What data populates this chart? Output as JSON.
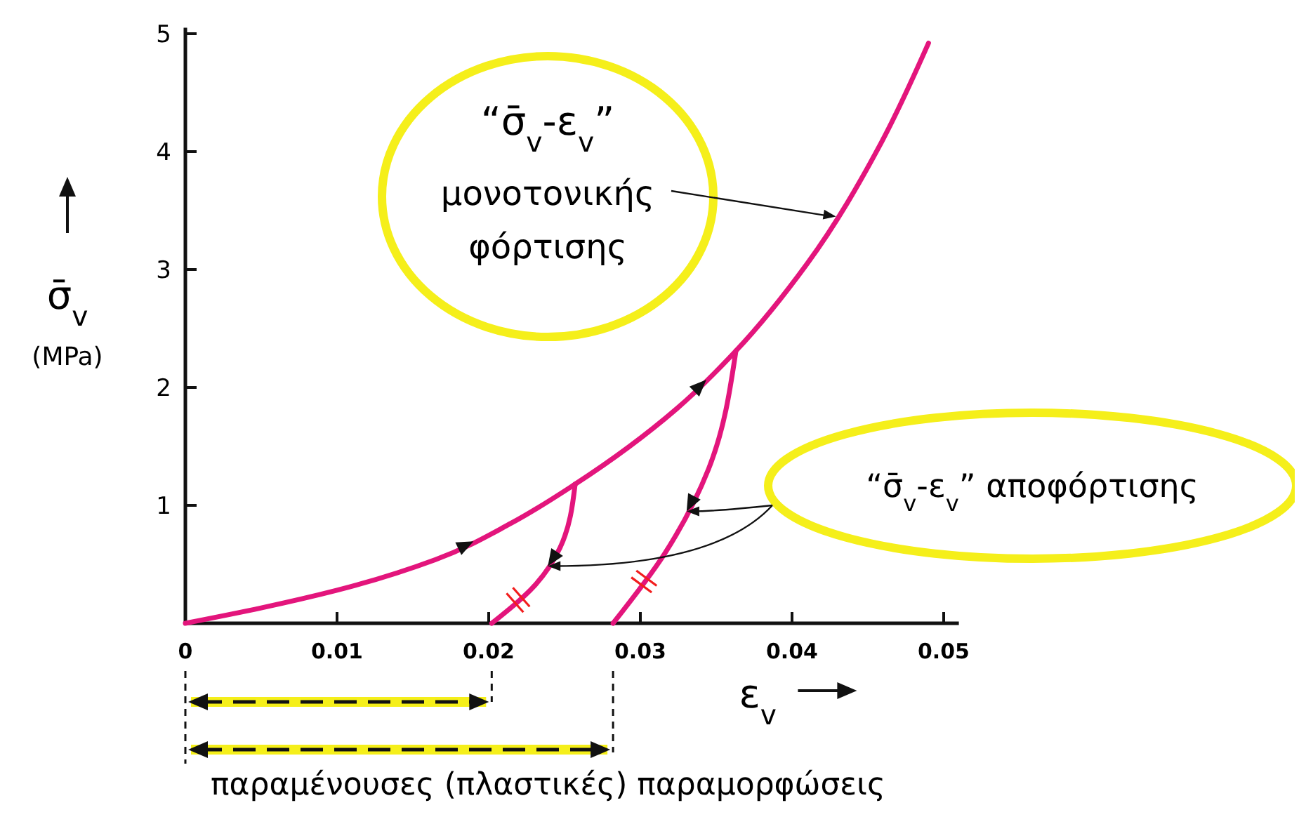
{
  "chart_data": {
    "type": "line",
    "xlabel": "ε$_{v}$",
    "ylabel": "σ̄$_{v}$ (MPa)",
    "xlim": [
      0,
      0.051
    ],
    "ylim": [
      0,
      5.05
    ],
    "xticks": [
      0,
      0.01,
      0.02,
      0.03,
      0.04,
      0.05
    ],
    "yticks": [
      1,
      2,
      3,
      4,
      5
    ],
    "grid": false,
    "line_style": "solid",
    "marker": "none",
    "series": [
      {
        "color": "#e3157c",
        "x": [
          0,
          0.005,
          0.01,
          0.0165,
          0.0215,
          0.0257,
          0.0324,
          0.0363,
          0.041,
          0.0459,
          0.049
        ],
        "values": [
          0,
          0.13,
          0.28,
          0.54,
          0.85,
          1.18,
          1.82,
          2.31,
          3.05,
          4.08,
          4.92
        ]
      },
      {
        "color": "#e3157c",
        "x": [
          0.0257,
          0.0247,
          0.0231,
          0.0202
        ],
        "values": [
          1.18,
          0.64,
          0.33,
          0
        ]
      },
      {
        "color": "#e3157c",
        "x": [
          0.0363,
          0.0345,
          0.0316,
          0.0282
        ],
        "values": [
          2.31,
          1.31,
          0.59,
          0
        ]
      }
    ],
    "annotations": [
      {
        "text": "“σ̄$_{v}$-ε$_{v}$” μονοτονικής φόρτισης",
        "x": 0.0429,
        "y": 3.45
      },
      "“σ̄$_{v}$-ε$_{v}$” αποφόρτισης",
      "παραμένουσες (πλαστικές) παραμορφώσεις"
    ]
  }
}
